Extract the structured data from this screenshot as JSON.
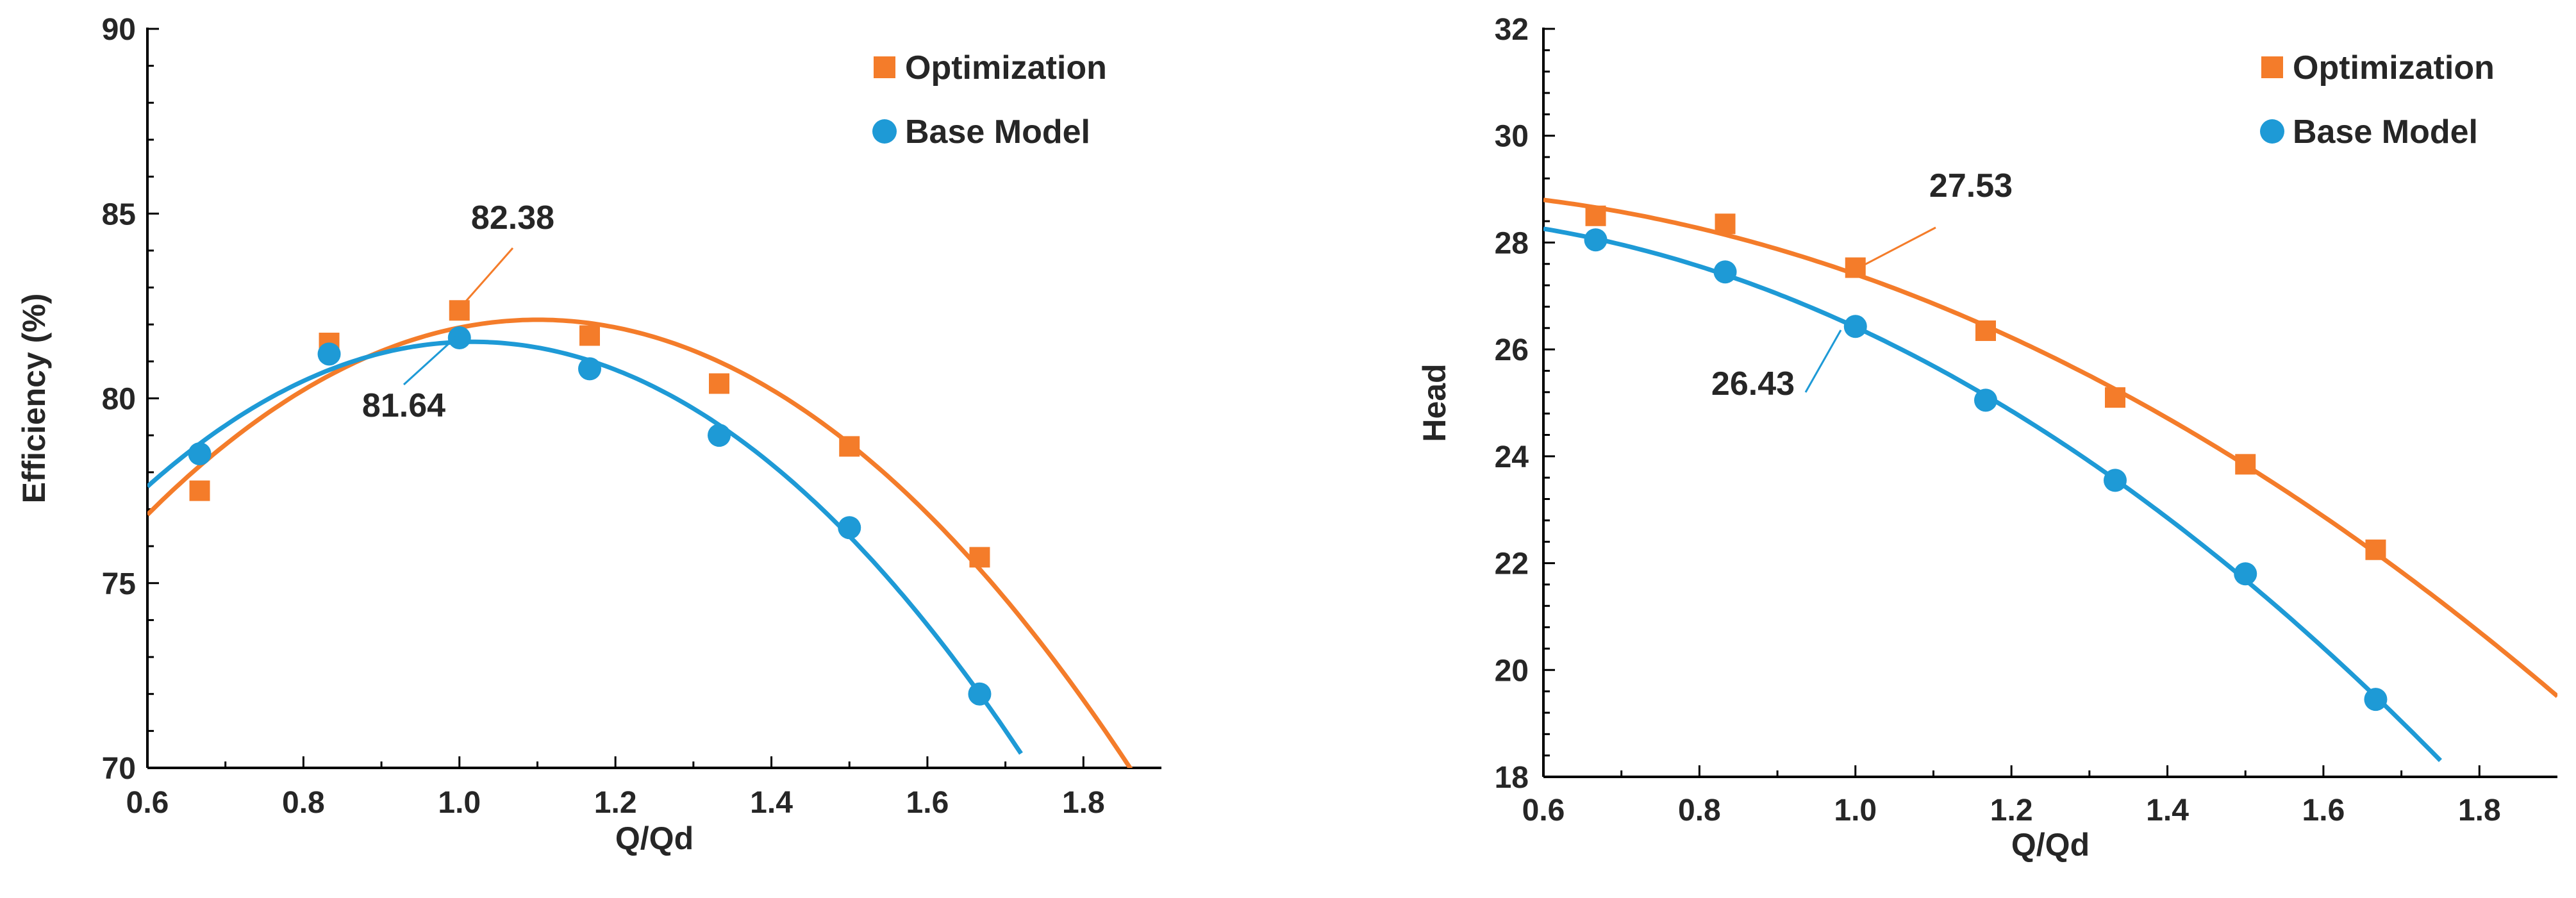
{
  "colors": {
    "optimization": "#F47C2A",
    "base": "#1E9AD6"
  },
  "chart_data": [
    {
      "type": "scatter",
      "id": "efficiency",
      "xlabel": "Q/Qd",
      "ylabel": "Efficiency (%)",
      "xlim": [
        0.6,
        1.9
      ],
      "ylim": [
        70,
        90
      ],
      "xticks": [
        "0.6",
        "0.8",
        "1.0",
        "1.2",
        "1.4",
        "1.6",
        "1.8"
      ],
      "yticks": [
        "70",
        "75",
        "80",
        "85",
        "90"
      ],
      "legend_position": "top-right",
      "series": [
        {
          "name": "Optimization",
          "marker": "square",
          "x": [
            0.667,
            0.833,
            1.0,
            1.167,
            1.333,
            1.5,
            1.667
          ],
          "y": [
            77.5,
            81.5,
            82.38,
            81.7,
            80.4,
            78.7,
            75.7
          ],
          "fit": {
            "type": "polynomial",
            "x_range": [
              0.6,
              1.9
            ]
          }
        },
        {
          "name": "Base Model",
          "marker": "circle",
          "x": [
            0.667,
            0.833,
            1.0,
            1.167,
            1.333,
            1.5,
            1.667
          ],
          "y": [
            78.5,
            81.2,
            81.64,
            80.8,
            79.0,
            76.5,
            72.0
          ],
          "fit": {
            "type": "polynomial",
            "x_range": [
              0.6,
              1.72
            ]
          }
        }
      ],
      "annotations": [
        {
          "label": "82.38",
          "series": "Optimization",
          "x": 1.0,
          "y": 82.38
        },
        {
          "label": "81.64",
          "series": "Base Model",
          "x": 1.0,
          "y": 81.64
        }
      ]
    },
    {
      "type": "scatter",
      "id": "head",
      "xlabel": "Q/Qd",
      "ylabel": "Head",
      "xlim": [
        0.6,
        1.9
      ],
      "ylim": [
        18,
        32
      ],
      "xticks": [
        "0.6",
        "0.8",
        "1.0",
        "1.2",
        "1.4",
        "1.6",
        "1.8"
      ],
      "yticks": [
        "18",
        "20",
        "22",
        "24",
        "26",
        "28",
        "30",
        "32"
      ],
      "legend_position": "top-right",
      "series": [
        {
          "name": "Optimization",
          "marker": "square",
          "x": [
            0.667,
            0.833,
            1.0,
            1.167,
            1.333,
            1.5,
            1.667
          ],
          "y": [
            28.5,
            28.35,
            27.53,
            26.35,
            25.1,
            23.85,
            22.25
          ],
          "fit": {
            "type": "polynomial",
            "x_range": [
              0.6,
              1.9
            ]
          }
        },
        {
          "name": "Base Model",
          "marker": "circle",
          "x": [
            0.667,
            0.833,
            1.0,
            1.167,
            1.333,
            1.5,
            1.667
          ],
          "y": [
            28.05,
            27.45,
            26.43,
            25.05,
            23.55,
            21.8,
            19.45
          ],
          "fit": {
            "type": "polynomial",
            "x_range": [
              0.6,
              1.75
            ]
          }
        }
      ],
      "annotations": [
        {
          "label": "27.53",
          "series": "Optimization",
          "x": 1.0,
          "y": 27.53
        },
        {
          "label": "26.43",
          "series": "Base Model",
          "x": 1.0,
          "y": 26.43
        }
      ]
    }
  ]
}
